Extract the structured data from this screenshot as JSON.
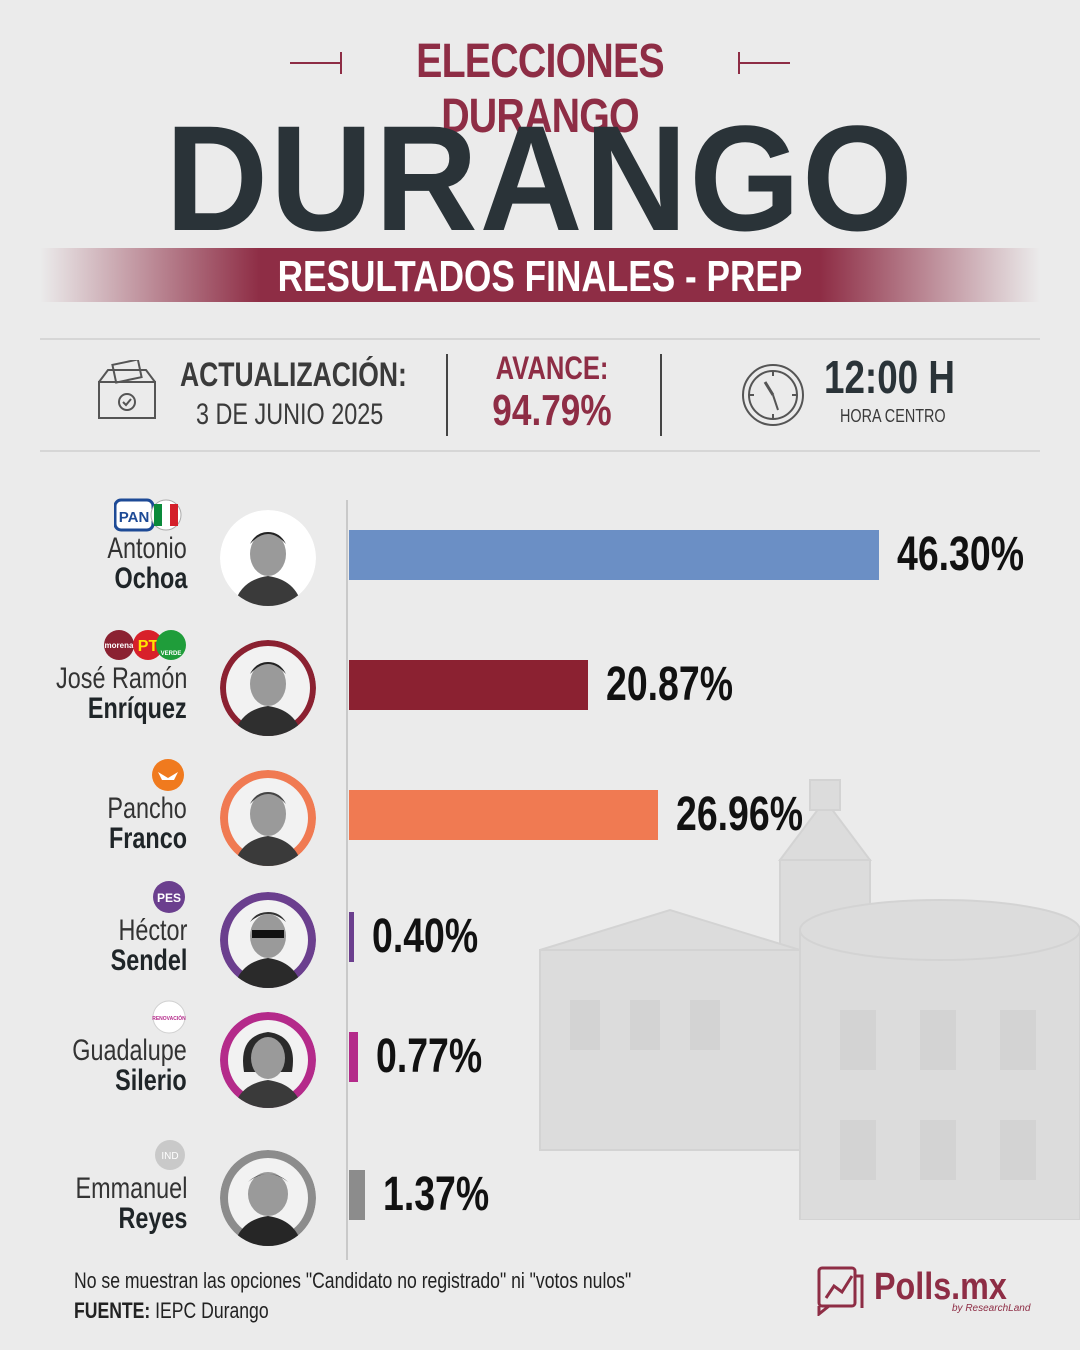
{
  "header": {
    "kicker": "ELECCIONES DURANGO",
    "title": "DURANGO",
    "banner": "RESULTADOS FINALES - PREP"
  },
  "info": {
    "update_label": "ACTUALIZACIÓN:",
    "update_date": "3 DE JUNIO 2025",
    "progress_label": "AVANCE:",
    "progress_value": "94.79%",
    "time": "12:00 H",
    "time_zone": "HORA CENTRO"
  },
  "parties": {
    "pan": "PAN",
    "pri": "PRI",
    "morena": "morena",
    "pt": "PT",
    "verde": "VERDE",
    "pes": "PES",
    "renovacion": "RENOVACIÓN",
    "ind": "IND"
  },
  "colors": {
    "brand": "#8e2d45",
    "ochoa": "#6b8fc5",
    "enriquez": "#8b2131",
    "franco": "#f07a52",
    "sendel": "#6b3f8e",
    "silerio": "#b42a8a",
    "reyes": "#8c8c8c"
  },
  "chart_data": {
    "type": "bar",
    "orientation": "horizontal",
    "categories": [
      "Antonio Ochoa",
      "José Ramón Enríquez",
      "Pancho Franco",
      "Héctor Sendel",
      "Guadalupe Silerio",
      "Emmanuel Reyes"
    ],
    "values": [
      46.3,
      20.87,
      26.96,
      0.4,
      0.77,
      1.37
    ],
    "labels": [
      "46.30%",
      "20.87%",
      "26.96%",
      "0.40%",
      "0.77%",
      "1.37%"
    ],
    "candidates": [
      {
        "first": "Antonio",
        "last": "Ochoa",
        "value": 46.3,
        "label": "46.30%",
        "color": "#6b8fc5"
      },
      {
        "first": "José Ramón",
        "last": "Enríquez",
        "value": 20.87,
        "label": "20.87%",
        "color": "#8b2131"
      },
      {
        "first": "Pancho",
        "last": "Franco",
        "value": 26.96,
        "label": "26.96%",
        "color": "#f07a52"
      },
      {
        "first": "Héctor",
        "last": "Sendel",
        "value": 0.4,
        "label": "0.40%",
        "color": "#6b3f8e"
      },
      {
        "first": "Guadalupe",
        "last": "Silerio",
        "value": 0.77,
        "label": "0.77%",
        "color": "#b42a8a"
      },
      {
        "first": "Emmanuel",
        "last": "Reyes",
        "value": 1.37,
        "label": "1.37%",
        "color": "#8c8c8c"
      }
    ],
    "xlim": [
      0,
      46.3
    ],
    "grid": false,
    "legend": "none"
  },
  "footer": {
    "note": "No se muestran las opciones \"Candidato no registrado\" ni \"votos nulos\"",
    "source_label": "FUENTE:",
    "source_value": " IEPC Durango",
    "logo": "Polls.mx",
    "logo_sub": "by ResearchLand"
  }
}
